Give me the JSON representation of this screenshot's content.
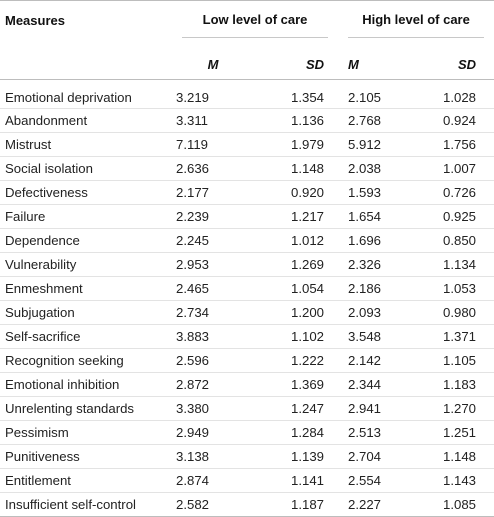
{
  "table": {
    "header": {
      "measures": "Measures",
      "low_group": "Low level of care",
      "high_group": "High level of care",
      "m": "M",
      "sd": "SD"
    },
    "rows": [
      {
        "measure": "Emotional deprivation",
        "low_m": "3.219",
        "low_sd": "1.354",
        "high_m": "2.105",
        "high_sd": "1.028"
      },
      {
        "measure": "Abandonment",
        "low_m": "3.311",
        "low_sd": "1.136",
        "high_m": "2.768",
        "high_sd": "0.924"
      },
      {
        "measure": "Mistrust",
        "low_m": "7.119",
        "low_sd": "1.979",
        "high_m": "5.912",
        "high_sd": "1.756"
      },
      {
        "measure": "Social isolation",
        "low_m": "2.636",
        "low_sd": "1.148",
        "high_m": "2.038",
        "high_sd": "1.007"
      },
      {
        "measure": "Defectiveness",
        "low_m": "2.177",
        "low_sd": "0.920",
        "high_m": "1.593",
        "high_sd": "0.726"
      },
      {
        "measure": "Failure",
        "low_m": "2.239",
        "low_sd": "1.217",
        "high_m": "1.654",
        "high_sd": "0.925"
      },
      {
        "measure": "Dependence",
        "low_m": "2.245",
        "low_sd": "1.012",
        "high_m": "1.696",
        "high_sd": "0.850"
      },
      {
        "measure": "Vulnerability",
        "low_m": "2.953",
        "low_sd": "1.269",
        "high_m": "2.326",
        "high_sd": "1.134"
      },
      {
        "measure": "Enmeshment",
        "low_m": "2.465",
        "low_sd": "1.054",
        "high_m": "2.186",
        "high_sd": "1.053"
      },
      {
        "measure": "Subjugation",
        "low_m": "2.734",
        "low_sd": "1.200",
        "high_m": "2.093",
        "high_sd": "0.980"
      },
      {
        "measure": "Self-sacrifice",
        "low_m": "3.883",
        "low_sd": "1.102",
        "high_m": "3.548",
        "high_sd": "1.371"
      },
      {
        "measure": "Recognition seeking",
        "low_m": "2.596",
        "low_sd": "1.222",
        "high_m": "2.142",
        "high_sd": "1.105"
      },
      {
        "measure": "Emotional inhibition",
        "low_m": "2.872",
        "low_sd": "1.369",
        "high_m": "2.344",
        "high_sd": "1.183"
      },
      {
        "measure": "Unrelenting standards",
        "low_m": "3.380",
        "low_sd": "1.247",
        "high_m": "2.941",
        "high_sd": "1.270"
      },
      {
        "measure": "Pessimism",
        "low_m": "2.949",
        "low_sd": "1.284",
        "high_m": "2.513",
        "high_sd": "1.251"
      },
      {
        "measure": "Punitiveness",
        "low_m": "3.138",
        "low_sd": "1.139",
        "high_m": "2.704",
        "high_sd": "1.148"
      },
      {
        "measure": "Entitlement",
        "low_m": "2.874",
        "low_sd": "1.141",
        "high_m": "2.554",
        "high_sd": "1.143"
      },
      {
        "measure": "Insufficient self-control",
        "low_m": "2.582",
        "low_sd": "1.187",
        "high_m": "2.227",
        "high_sd": "1.085"
      }
    ]
  }
}
